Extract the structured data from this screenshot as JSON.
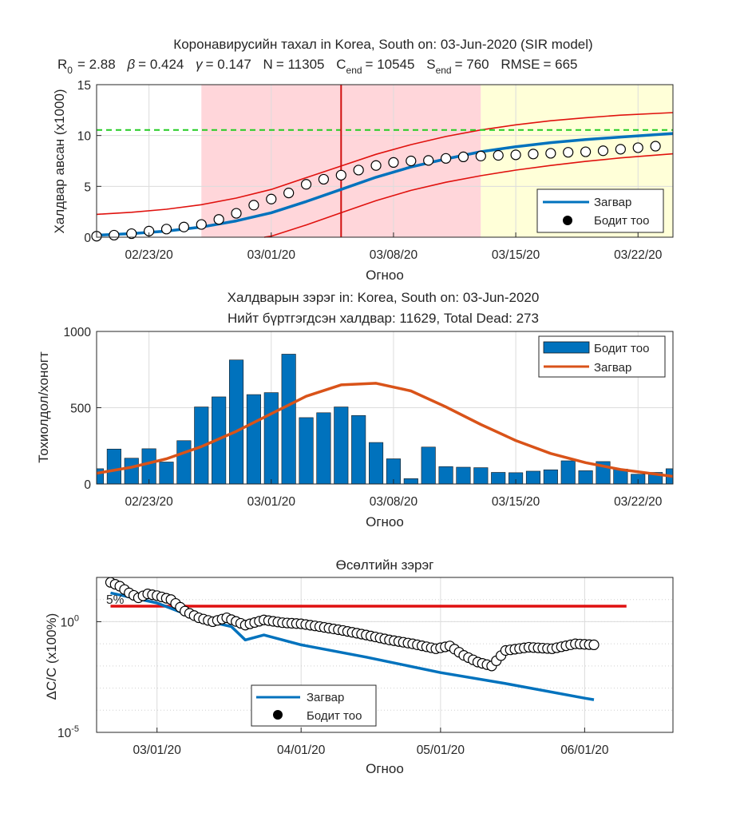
{
  "colors": {
    "model": "#0072BD",
    "bars": "#0072BD",
    "model_orange": "#D95319",
    "band": "#E0120E",
    "today_line": "#D01010",
    "asymptote": "#22CC22",
    "shade_red": "#FFD6DA",
    "shade_yellow": "#FFFFD8",
    "threshold": "#E01010"
  },
  "panel1": {
    "title_line1": "Коронавирусийн тахал in Korea, South on: 03-Jun-2020 (SIR model)",
    "params": {
      "R0_lbl": "R",
      "R0_sub": "0",
      "R0_val": "=  2.88",
      "beta_lbl": "β",
      "beta_val": "=  0.424",
      "gamma_lbl": "γ",
      "gamma_val": "=  0.147",
      "N_lbl": "N",
      "N_val": "=  11305",
      "Cend_lbl": "C",
      "Cend_sub": "end",
      "Cend_val": "=  10545",
      "Send_lbl": "S",
      "Send_sub": "end",
      "Send_val": "=  760",
      "rmse_lbl": "RMSE",
      "rmse_val": "=  665"
    },
    "xlabel": "Огноо",
    "ylabel": "Халдвар авсан (x1000)",
    "legend": {
      "model": "Загвар",
      "actual": "Бодит тоо"
    }
  },
  "panel2": {
    "title_line1": "Халдварын зэрэг in: Korea, South on: 03-Jun-2020",
    "title_line2": "Нийт бүртгэгдсэн халдвар: 11629, Total Dead: 273",
    "xlabel": "Огноо",
    "ylabel": "Тохиолдол/хоногт",
    "legend": {
      "actual": "Бодит тоо",
      "model": "Загвар"
    }
  },
  "panel3": {
    "title": "Өсөлтийн зэрэг",
    "xlabel": "Огноо",
    "ylabel": "ΔC/C (x100%)",
    "annotation": "5%",
    "legend": {
      "model": "Загвар",
      "actual": "Бодит тоо"
    }
  },
  "chart_data": [
    {
      "type": "line",
      "xlim": [
        "2020-02-20",
        "2020-03-24"
      ],
      "ylim": [
        0,
        15
      ],
      "xticks": [
        "02/23/20",
        "03/01/20",
        "03/08/20",
        "03/15/20",
        "03/22/20"
      ],
      "yticks": [
        0,
        5,
        10,
        15
      ],
      "asymptote": 10.545,
      "current_date": "2020-03-05",
      "shaded_regions": [
        {
          "color": "red",
          "x": [
            "2020-02-26",
            "2020-03-13"
          ]
        },
        {
          "color": "yellow",
          "x": [
            "2020-03-13",
            "2020-03-24"
          ]
        }
      ],
      "series": [
        {
          "name": "Загвар",
          "x": [
            "2020-02-20",
            "2020-02-22",
            "2020-02-24",
            "2020-02-26",
            "2020-02-28",
            "2020-03-01",
            "2020-03-03",
            "2020-03-05",
            "2020-03-07",
            "2020-03-09",
            "2020-03-11",
            "2020-03-13",
            "2020-03-15",
            "2020-03-17",
            "2020-03-19",
            "2020-03-21",
            "2020-03-24"
          ],
          "y": [
            0.2,
            0.35,
            0.6,
            1.0,
            1.6,
            2.4,
            3.5,
            4.7,
            5.9,
            6.9,
            7.7,
            8.4,
            8.9,
            9.3,
            9.6,
            9.85,
            10.2
          ]
        },
        {
          "name": "Бодит тоо",
          "x": [
            "2020-02-20",
            "2020-02-21",
            "2020-02-22",
            "2020-02-23",
            "2020-02-24",
            "2020-02-25",
            "2020-02-26",
            "2020-02-27",
            "2020-02-28",
            "2020-02-29",
            "2020-03-01",
            "2020-03-02",
            "2020-03-03",
            "2020-03-04",
            "2020-03-05",
            "2020-03-06",
            "2020-03-07",
            "2020-03-08",
            "2020-03-09",
            "2020-03-10",
            "2020-03-11",
            "2020-03-12",
            "2020-03-13",
            "2020-03-14",
            "2020-03-15",
            "2020-03-16",
            "2020-03-17",
            "2020-03-18",
            "2020-03-19",
            "2020-03-20",
            "2020-03-21",
            "2020-03-22",
            "2020-03-23"
          ],
          "y": [
            0.1,
            0.2,
            0.35,
            0.6,
            0.8,
            1.0,
            1.25,
            1.75,
            2.35,
            3.15,
            3.75,
            4.35,
            5.2,
            5.7,
            6.1,
            6.6,
            7.05,
            7.35,
            7.5,
            7.55,
            7.75,
            7.9,
            7.98,
            8.05,
            8.1,
            8.18,
            8.25,
            8.35,
            8.4,
            8.5,
            8.65,
            8.8,
            8.95
          ]
        }
      ],
      "bands": {
        "upper": [
          2.25,
          2.45,
          2.75,
          3.2,
          3.85,
          4.7,
          5.85,
          7.0,
          8.15,
          9.1,
          9.9,
          10.55,
          11.05,
          11.45,
          11.75,
          12.0,
          12.25
        ],
        "lower": [
          -1.6,
          -1.5,
          -1.25,
          -0.9,
          -0.4,
          0.1,
          1.2,
          2.4,
          3.6,
          4.6,
          5.4,
          6.05,
          6.6,
          7.05,
          7.45,
          7.8,
          8.2
        ]
      }
    },
    {
      "type": "bar",
      "xlim": [
        "2020-02-20",
        "2020-03-24"
      ],
      "ylim": [
        0,
        1000
      ],
      "xticks": [
        "02/23/20",
        "03/01/20",
        "03/08/20",
        "03/15/20",
        "03/22/20"
      ],
      "yticks": [
        0,
        500,
        1000
      ],
      "categories": [
        "2020-02-20",
        "2020-02-21",
        "2020-02-22",
        "2020-02-23",
        "2020-02-24",
        "2020-02-25",
        "2020-02-26",
        "2020-02-27",
        "2020-02-28",
        "2020-02-29",
        "2020-03-01",
        "2020-03-02",
        "2020-03-03",
        "2020-03-04",
        "2020-03-05",
        "2020-03-06",
        "2020-03-07",
        "2020-03-08",
        "2020-03-09",
        "2020-03-10",
        "2020-03-11",
        "2020-03-12",
        "2020-03-13",
        "2020-03-14",
        "2020-03-15",
        "2020-03-16",
        "2020-03-17",
        "2020-03-18",
        "2020-03-19",
        "2020-03-20",
        "2020-03-21",
        "2020-03-22",
        "2020-03-23",
        "2020-03-24"
      ],
      "series": [
        {
          "name": "Бодит тоо",
          "values": [
            100,
            229,
            169,
            231,
            144,
            284,
            505,
            571,
            813,
            586,
            599,
            851,
            435,
            467,
            505,
            449,
            272,
            165,
            35,
            242,
            114,
            110,
            107,
            76,
            74,
            84,
            93,
            152,
            87,
            147,
            98,
            64,
            76,
            100
          ]
        },
        {
          "name": "Загвар",
          "x": [
            "2020-02-20",
            "2020-02-22",
            "2020-02-24",
            "2020-02-26",
            "2020-02-28",
            "2020-03-01",
            "2020-03-03",
            "2020-03-05",
            "2020-03-07",
            "2020-03-09",
            "2020-03-11",
            "2020-03-13",
            "2020-03-15",
            "2020-03-17",
            "2020-03-19",
            "2020-03-21",
            "2020-03-24"
          ],
          "y": [
            70,
            110,
            165,
            245,
            345,
            460,
            575,
            650,
            660,
            610,
            505,
            390,
            285,
            200,
            140,
            95,
            50
          ]
        }
      ]
    },
    {
      "type": "line",
      "yscale": "log",
      "xlim": [
        "2020-02-17",
        "2020-06-20"
      ],
      "ylim": [
        1e-05,
        100
      ],
      "xticks": [
        "03/01/20",
        "04/01/20",
        "05/01/20",
        "06/01/20"
      ],
      "yticks": [
        "10^-5",
        "10^0"
      ],
      "threshold": {
        "label": "5%",
        "y": 5
      },
      "series": [
        {
          "name": "Загвар",
          "x": [
            "2020-02-20",
            "2020-03-01",
            "2020-03-10",
            "2020-03-17",
            "2020-03-20",
            "2020-03-24",
            "2020-04-01",
            "2020-04-15",
            "2020-05-01",
            "2020-05-15",
            "2020-06-01",
            "2020-06-03"
          ],
          "y": [
            20,
            7,
            1.3,
            0.6,
            0.15,
            0.25,
            0.09,
            0.025,
            0.005,
            0.0016,
            0.00035,
            0.0003
          ]
        },
        {
          "name": "Бодит тоо",
          "x": [
            "2020-02-20",
            "2020-02-22",
            "2020-02-24",
            "2020-02-26",
            "2020-02-28",
            "2020-03-01",
            "2020-03-04",
            "2020-03-07",
            "2020-03-10",
            "2020-03-13",
            "2020-03-16",
            "2020-03-20",
            "2020-03-24",
            "2020-03-28",
            "2020-04-01",
            "2020-04-05",
            "2020-04-10",
            "2020-04-15",
            "2020-04-20",
            "2020-04-25",
            "2020-04-30",
            "2020-05-03",
            "2020-05-06",
            "2020-05-09",
            "2020-05-12",
            "2020-05-15",
            "2020-05-20",
            "2020-05-25",
            "2020-05-30",
            "2020-06-03"
          ],
          "y": [
            60,
            40,
            20,
            12,
            18,
            15,
            10,
            3,
            1.5,
            1.0,
            1.5,
            0.7,
            1.2,
            0.9,
            0.8,
            0.6,
            0.4,
            0.25,
            0.15,
            0.1,
            0.06,
            0.08,
            0.03,
            0.015,
            0.01,
            0.05,
            0.07,
            0.06,
            0.1,
            0.09
          ]
        }
      ]
    }
  ]
}
